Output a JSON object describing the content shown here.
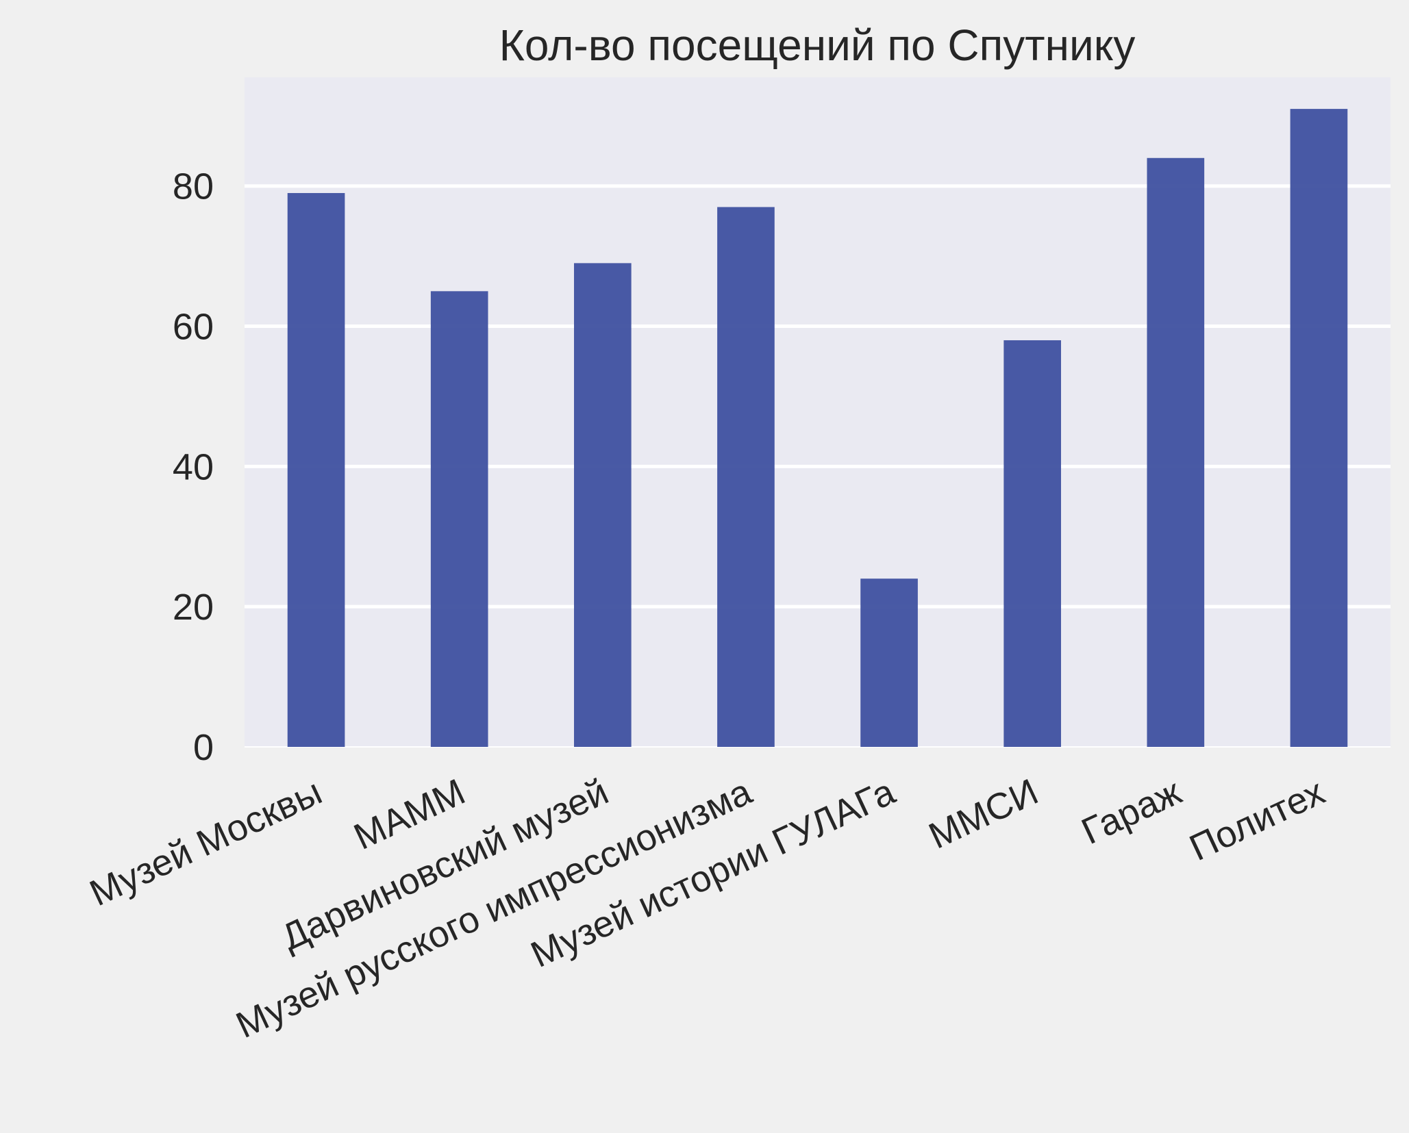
{
  "chart_data": {
    "type": "bar",
    "title": "Кол-во посещений по Спутнику",
    "xlabel": "",
    "ylabel": "",
    "categories": [
      "Музей Москвы",
      "МАММ",
      "Дарвиновский музей",
      "Музей русского импрессионизма",
      "Музей истории ГУЛАГа",
      "ММСИ",
      "Гараж",
      "Политех"
    ],
    "values": [
      79,
      65,
      69,
      77,
      24,
      58,
      84,
      91
    ],
    "ylim": [
      0,
      95.5
    ],
    "yticks": [
      0,
      20,
      40,
      60,
      80
    ],
    "grid": true,
    "colors": {
      "bar": "#3f51a0",
      "plot_background": "#eaeaf2",
      "page_background": "#f0f0f0",
      "grid": "#ffffff",
      "text": "#262626"
    }
  }
}
